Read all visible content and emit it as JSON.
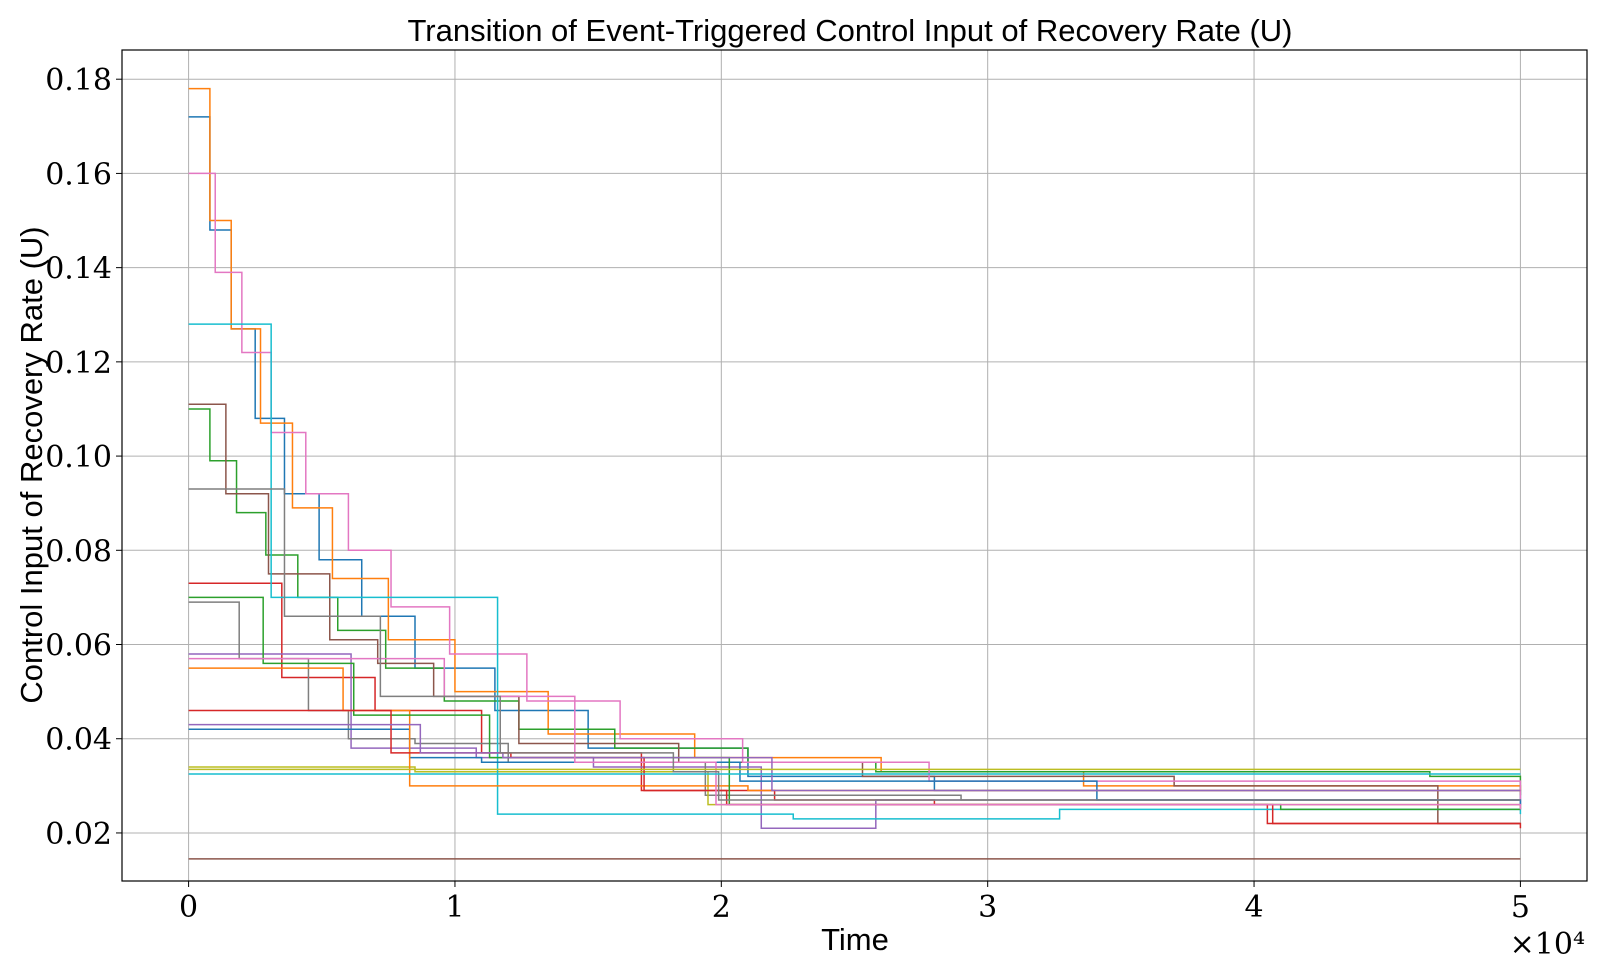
{
  "chart_data": {
    "type": "line",
    "step": "post",
    "title": "Transition of Event-Triggered Control Input of Recovery Rate (U)",
    "xlabel": "Time",
    "ylabel": "Control Input of Recovery Rate (U)",
    "x_multiplier_label": "×10⁴",
    "xlim": [
      -2500,
      52500
    ],
    "ylim": [
      0.0098,
      0.1862
    ],
    "x_ticks": [
      0,
      10000,
      20000,
      30000,
      40000,
      50000
    ],
    "x_tick_labels": [
      "0",
      "1",
      "2",
      "3",
      "4",
      "5"
    ],
    "y_ticks": [
      0.02,
      0.04,
      0.06,
      0.08,
      0.1,
      0.12,
      0.14,
      0.16,
      0.18
    ],
    "y_tick_labels": [
      "0.02",
      "0.04",
      "0.06",
      "0.08",
      "0.10",
      "0.12",
      "0.14",
      "0.16",
      "0.18"
    ],
    "grid": true,
    "legend": false,
    "series": [
      {
        "color": "#1f77b4",
        "x": [
          0,
          800,
          1600,
          2500,
          3600,
          4900,
          6500,
          8500,
          11500,
          15000,
          21000,
          28000,
          50000
        ],
        "y": [
          0.172,
          0.148,
          0.127,
          0.108,
          0.092,
          0.078,
          0.066,
          0.055,
          0.046,
          0.038,
          0.032,
          0.029,
          0.025
        ]
      },
      {
        "color": "#ff7f0e",
        "x": [
          0,
          800,
          1600,
          2700,
          3900,
          5400,
          7500,
          10000,
          13500,
          19000,
          26000,
          33600,
          50000
        ],
        "y": [
          0.178,
          0.15,
          0.127,
          0.107,
          0.089,
          0.074,
          0.061,
          0.05,
          0.041,
          0.036,
          0.033,
          0.03,
          0.029
        ]
      },
      {
        "color": "#2ca02c",
        "x": [
          0,
          800,
          1800,
          2900,
          4100,
          5600,
          7400,
          9600,
          12400,
          16000,
          21000,
          25800,
          46600,
          50000
        ],
        "y": [
          0.11,
          0.099,
          0.088,
          0.079,
          0.07,
          0.063,
          0.055,
          0.048,
          0.042,
          0.038,
          0.035,
          0.033,
          0.032,
          0.028
        ]
      },
      {
        "color": "#d62728",
        "x": [
          0,
          3500,
          7000,
          11000,
          17000,
          22000,
          28000,
          40500,
          50000
        ],
        "y": [
          0.073,
          0.053,
          0.046,
          0.037,
          0.029,
          0.027,
          0.026,
          0.022,
          0.021
        ]
      },
      {
        "color": "#9467bd",
        "x": [
          0,
          6100,
          10800,
          15200,
          21500,
          25800,
          50000
        ],
        "y": [
          0.058,
          0.038,
          0.036,
          0.034,
          0.021,
          0.027,
          0.027
        ]
      },
      {
        "color": "#8c564b",
        "x": [
          0,
          1400,
          3000,
          5300,
          7100,
          9200,
          12400,
          18400,
          25300,
          37000,
          46900,
          50000
        ],
        "y": [
          0.111,
          0.092,
          0.075,
          0.061,
          0.056,
          0.049,
          0.039,
          0.035,
          0.032,
          0.03,
          0.022,
          0.022
        ]
      },
      {
        "color": "#e377c2",
        "x": [
          0,
          1000,
          2000,
          3100,
          4400,
          6000,
          7600,
          9800,
          12700,
          16200,
          20800,
          27800,
          50000
        ],
        "y": [
          0.16,
          0.139,
          0.122,
          0.105,
          0.092,
          0.08,
          0.068,
          0.058,
          0.048,
          0.04,
          0.035,
          0.031,
          0.026
        ]
      },
      {
        "color": "#7f7f7f",
        "x": [
          0,
          1900,
          4500,
          6000,
          8500,
          12000,
          19400,
          29000,
          48600,
          50000
        ],
        "y": [
          0.069,
          0.057,
          0.046,
          0.04,
          0.039,
          0.035,
          0.028,
          0.027,
          0.027,
          0.027
        ]
      },
      {
        "color": "#bcbd22",
        "x": [
          0,
          8500,
          19500,
          50000
        ],
        "y": [
          0.034,
          0.033,
          0.026,
          0.025
        ]
      },
      {
        "color": "#17becf",
        "x": [
          0,
          3100,
          5300,
          11600,
          22700,
          32700,
          50000
        ],
        "y": [
          0.128,
          0.07,
          0.07,
          0.024,
          0.023,
          0.025,
          0.024
        ]
      },
      {
        "color": "#1f77b4",
        "x": [
          0,
          4000,
          8300,
          11000,
          20700,
          34100,
          50000
        ],
        "y": [
          0.042,
          0.042,
          0.036,
          0.035,
          0.031,
          0.027,
          0.026
        ]
      },
      {
        "color": "#ff7f0e",
        "x": [
          0,
          5800,
          8300,
          21000,
          50000
        ],
        "y": [
          0.055,
          0.046,
          0.03,
          0.029,
          0.029
        ]
      },
      {
        "color": "#2ca02c",
        "x": [
          0,
          2800,
          6200,
          11300,
          20300,
          41000,
          46700,
          50000
        ],
        "y": [
          0.07,
          0.056,
          0.045,
          0.036,
          0.026,
          0.025,
          0.025,
          0.025
        ]
      },
      {
        "color": "#d62728",
        "x": [
          0,
          7600,
          12100,
          17100,
          20200,
          40700,
          50000
        ],
        "y": [
          0.046,
          0.037,
          0.036,
          0.029,
          0.026,
          0.022,
          0.022
        ]
      },
      {
        "color": "#9467bd",
        "x": [
          0,
          7200,
          8700,
          11800,
          21900,
          50000
        ],
        "y": [
          0.043,
          0.043,
          0.037,
          0.036,
          0.029,
          0.029
        ]
      },
      {
        "color": "#8c564b",
        "x": [
          0,
          50000
        ],
        "y": [
          0.0145,
          0.0145
        ]
      },
      {
        "color": "#e377c2",
        "x": [
          0,
          9600,
          14500,
          19800,
          50000
        ],
        "y": [
          0.057,
          0.049,
          0.035,
          0.026,
          0.025
        ]
      },
      {
        "color": "#7f7f7f",
        "x": [
          0,
          3600,
          7200,
          11700,
          18200,
          19900,
          50000
        ],
        "y": [
          0.093,
          0.066,
          0.049,
          0.037,
          0.033,
          0.027,
          0.027
        ]
      },
      {
        "color": "#bcbd22",
        "x": [
          0,
          50000
        ],
        "y": [
          0.0335,
          0.0335
        ]
      },
      {
        "color": "#17becf",
        "x": [
          0,
          50000
        ],
        "y": [
          0.0325,
          0.0325
        ]
      }
    ]
  }
}
